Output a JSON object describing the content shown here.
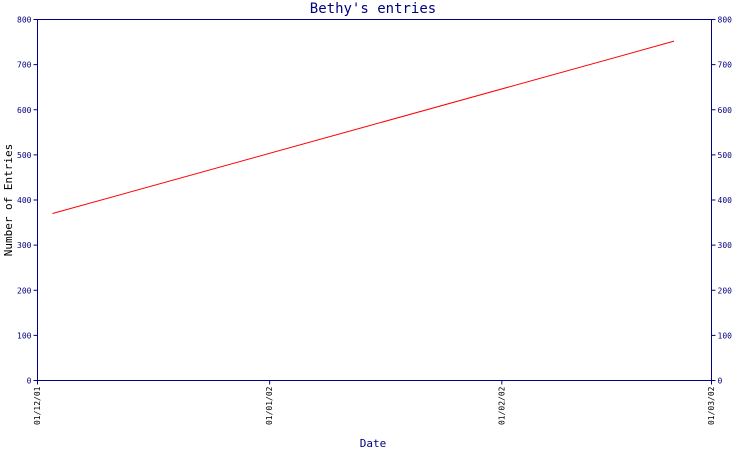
{
  "colors": {
    "axis": "#000080",
    "series": "#ff0000",
    "title": "#000080",
    "background": "#ffffff"
  },
  "chart_data": {
    "type": "line",
    "title": "Bethy's entries",
    "xlabel": "Date",
    "ylabel": "Number of Entries",
    "x_axis_type": "date",
    "xlim": [
      "2001-12-01",
      "2002-03-01"
    ],
    "ylim": [
      0,
      800
    ],
    "x_ticks": [
      {
        "date": "2001-12-01",
        "label": "01/12/01"
      },
      {
        "date": "2002-01-01",
        "label": "01/01/02"
      },
      {
        "date": "2002-02-01",
        "label": "01/02/02"
      },
      {
        "date": "2002-03-01",
        "label": "01/03/02"
      }
    ],
    "y_ticks": [
      0,
      100,
      200,
      300,
      400,
      500,
      600,
      700,
      800
    ],
    "y_ticks_mirrored_right": true,
    "grid": false,
    "series": [
      {
        "color": "#ff0000",
        "points": [
          {
            "x": "2001-12-03",
            "y": 370
          },
          {
            "x": "2002-02-24",
            "y": 752
          }
        ]
      }
    ]
  }
}
